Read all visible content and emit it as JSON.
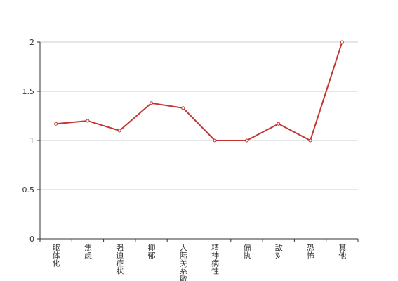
{
  "chart_data": {
    "type": "line",
    "categories": [
      "躯体化",
      "焦虑",
      "强迫症状",
      "抑郁",
      "人际关系敏感",
      "精神病性",
      "偏执",
      "敌对",
      "恐怖",
      "其他"
    ],
    "values": [
      1.17,
      1.2,
      1.1,
      1.38,
      1.33,
      1.0,
      1.0,
      1.17,
      1.0,
      2.0
    ],
    "color": "#c23531",
    "ylim": [
      0,
      2
    ],
    "yticks": [
      0,
      0.5,
      1,
      1.5,
      2
    ],
    "grid": true
  }
}
